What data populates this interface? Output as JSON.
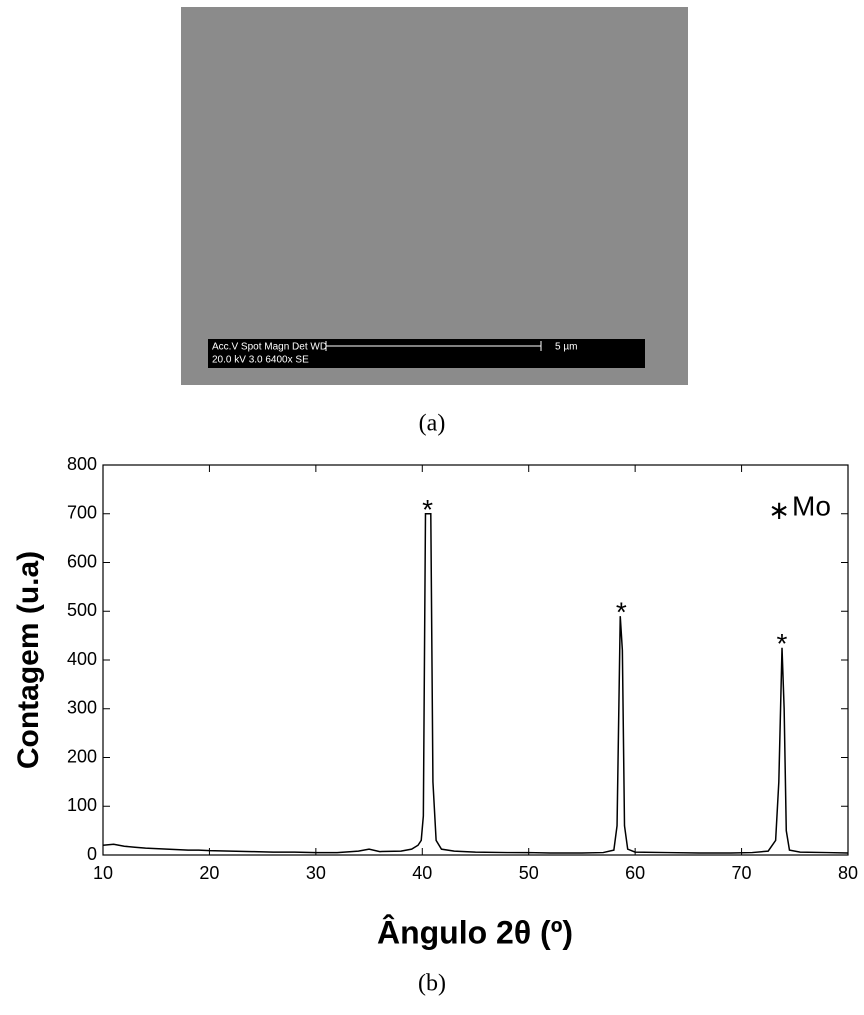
{
  "figure_a": {
    "caption": "(a)",
    "info_bar": {
      "row1": "Acc.V  Spot Magn    Det  WD",
      "row2": "20.0 kV 3.0   6400x     SE",
      "scale": "5 µm"
    }
  },
  "chart_data": {
    "type": "line",
    "caption": "(b)",
    "x_label": "Ângulo 2θ (º)",
    "y_label": "Contagem (u.a)",
    "x": [
      10,
      11,
      12,
      13,
      14,
      15,
      16,
      17,
      18,
      19,
      20,
      22,
      24,
      26,
      28,
      30,
      32,
      34,
      35,
      36,
      38,
      39,
      39.6,
      39.9,
      40.1,
      40.3,
      40.8,
      41.0,
      41.3,
      41.8,
      43,
      45,
      48,
      50,
      52,
      55,
      57,
      58.0,
      58.3,
      58.6,
      58.8,
      59.0,
      59.3,
      60,
      63,
      66,
      69,
      71,
      72.5,
      73.2,
      73.5,
      73.8,
      74.0,
      74.2,
      74.5,
      75.5,
      78,
      80
    ],
    "series": [
      {
        "color": "#000000",
        "values": [
          20,
          22,
          18,
          16,
          14,
          13,
          12,
          11,
          10,
          10,
          9,
          8,
          7,
          6,
          6,
          5,
          5,
          8,
          12,
          7,
          8,
          12,
          20,
          30,
          80,
          700,
          700,
          150,
          30,
          12,
          8,
          6,
          5,
          5,
          4,
          4,
          5,
          10,
          60,
          490,
          420,
          60,
          12,
          6,
          5,
          4,
          4,
          5,
          8,
          30,
          150,
          425,
          300,
          50,
          10,
          6,
          5,
          4
        ]
      }
    ],
    "xlim": [
      10,
      80
    ],
    "xticks": [
      10,
      20,
      30,
      40,
      50,
      60,
      70,
      80
    ],
    "ylim": [
      0,
      800
    ],
    "yticks": [
      0,
      100,
      200,
      300,
      400,
      500,
      600,
      700,
      800
    ],
    "annotations": [
      {
        "text": "*",
        "x": 40.5,
        "y": 700
      },
      {
        "text": "*",
        "x": 58.7,
        "y": 490
      },
      {
        "text": "*",
        "x": 73.8,
        "y": 425
      }
    ],
    "legend_note": {
      "symbol": "∗",
      "text": "Mo"
    }
  }
}
